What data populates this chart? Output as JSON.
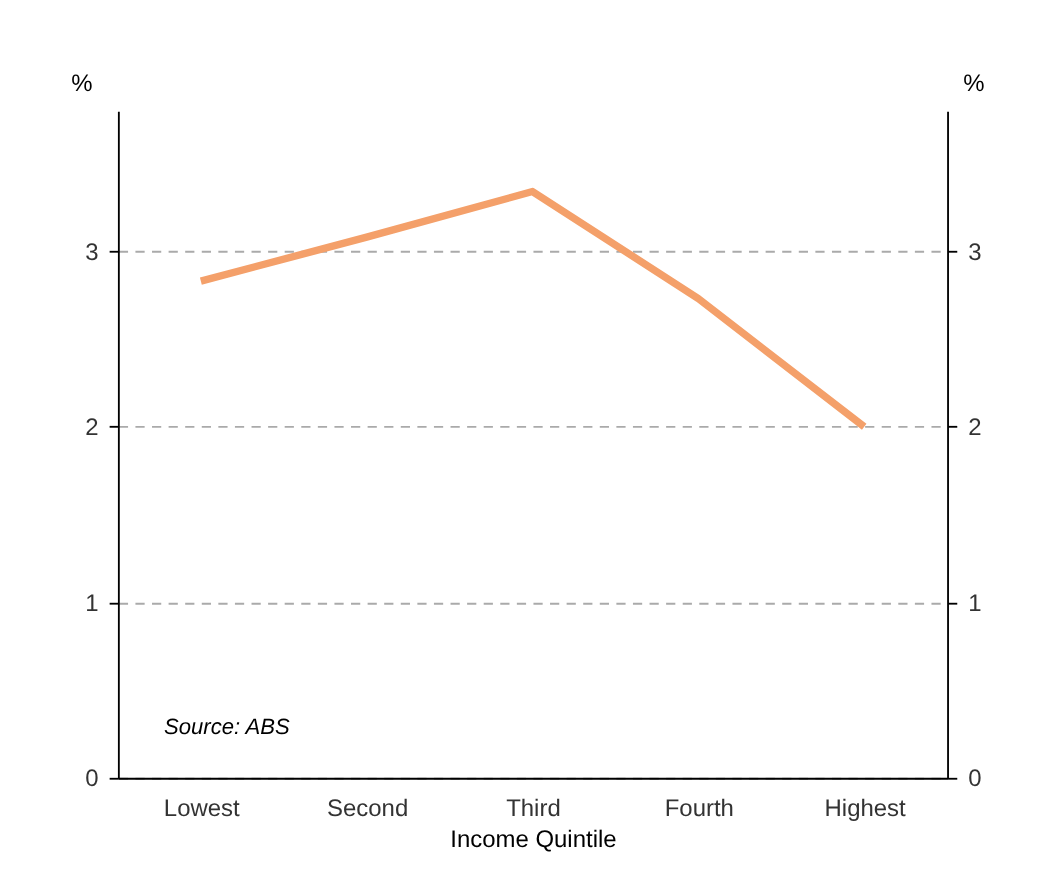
{
  "chart_data": {
    "type": "line",
    "categories": [
      "Lowest",
      "Second",
      "Third",
      "Fourth",
      "Highest"
    ],
    "series": [
      {
        "color": "#f4a06a",
        "values": [
          2.83,
          3.08,
          3.34,
          2.73,
          2.0
        ]
      }
    ],
    "xlabel": "Income Quintile",
    "ylabel": "%",
    "y2label": "%",
    "ylim": [
      0,
      3.8
    ],
    "yticks": [
      0,
      1,
      2,
      3
    ],
    "y2lim": [
      0,
      3.8
    ],
    "y2ticks": [
      0,
      1,
      2,
      3
    ],
    "grid": "y",
    "marker": "none",
    "line_style": "solid",
    "annotations": [
      "Source: ABS"
    ]
  }
}
